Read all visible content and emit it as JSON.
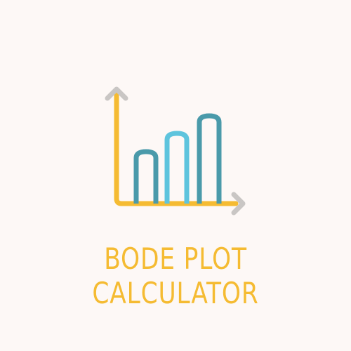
{
  "title": {
    "line1": "BODE PLOT",
    "line2": "CALCULATOR"
  },
  "colors": {
    "background": "#fdf8f6",
    "title_text": "#f5bb32",
    "axis_line": "#f5bb32",
    "arrow_heads": "#c9c6c4",
    "bar_dark": "#4a9aaa",
    "bar_light": "#5ec4dd"
  },
  "icon": {
    "name": "bar-chart-logo-icon",
    "bars": [
      {
        "name": "bar-short",
        "color": "bar_dark"
      },
      {
        "name": "bar-medium",
        "color": "bar_light"
      },
      {
        "name": "bar-tall",
        "color": "bar_dark"
      }
    ]
  }
}
